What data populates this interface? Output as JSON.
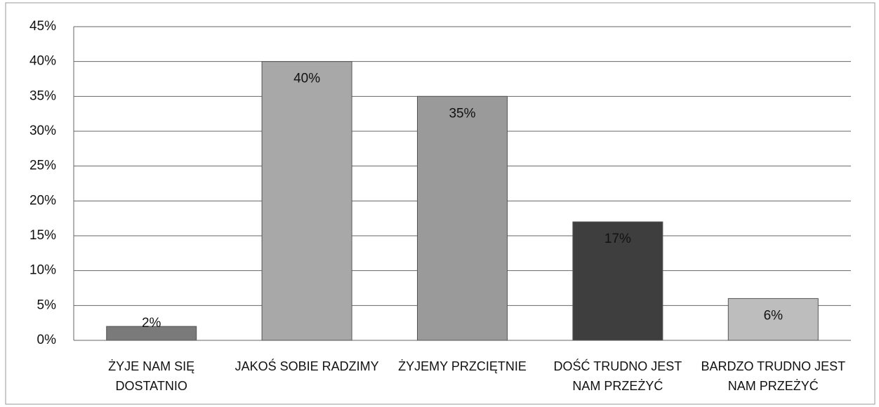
{
  "chart_data": {
    "type": "bar",
    "categories": [
      "ŻYJE NAM SIĘ DOSTATNIO",
      "JAKOŚ SOBIE RADZIMY",
      "ŻYJEMY PRZCIĘTNIE",
      "DOŚĆ TRUDNO JEST NAM PRZEŻYĆ",
      "BARDZO TRUDNO JEST NAM PRZEŻYĆ"
    ],
    "values": [
      2,
      40,
      35,
      17,
      6
    ],
    "value_labels": [
      "2%",
      "40%",
      "35%",
      "17%",
      "6%"
    ],
    "colors": [
      "#7a7a7a",
      "#a8a8a8",
      "#9a9a9a",
      "#3e3e3e",
      "#bdbdbd"
    ],
    "ylim": [
      0,
      45
    ],
    "yticks": [
      {
        "value": 0,
        "label": "0%"
      },
      {
        "value": 5,
        "label": "5%"
      },
      {
        "value": 10,
        "label": "10%"
      },
      {
        "value": 15,
        "label": "15%"
      },
      {
        "value": 20,
        "label": "20%"
      },
      {
        "value": 25,
        "label": "25%"
      },
      {
        "value": 30,
        "label": "30%"
      },
      {
        "value": 35,
        "label": "35%"
      },
      {
        "value": 40,
        "label": "40%"
      },
      {
        "value": 45,
        "label": "45%"
      }
    ],
    "grid": true
  }
}
